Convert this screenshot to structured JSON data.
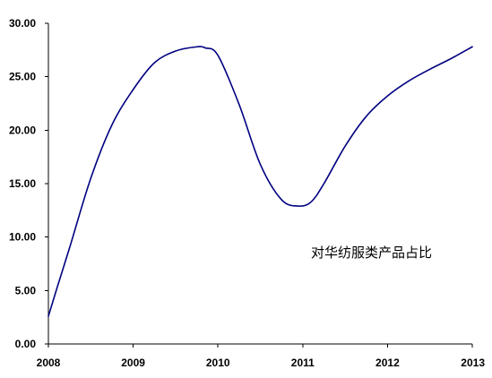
{
  "chart_data": {
    "type": "line",
    "title": "",
    "xlabel": "",
    "ylabel": "",
    "xlim": [
      2008,
      2013
    ],
    "ylim": [
      0,
      30
    ],
    "x_ticks": [
      "2008",
      "2009",
      "2010",
      "2011",
      "2012",
      "2013"
    ],
    "y_ticks": [
      "0.00",
      "5.00",
      "10.00",
      "15.00",
      "20.00",
      "25.00",
      "30.00"
    ],
    "grid": false,
    "annotation": "对华纺服类产品占比",
    "series": [
      {
        "color": "#000080",
        "x": [
          2008.0,
          2008.1,
          2008.25,
          2008.5,
          2008.75,
          2009.0,
          2009.25,
          2009.5,
          2009.75,
          2009.85,
          2010.0,
          2010.25,
          2010.5,
          2010.75,
          2010.95,
          2011.1,
          2011.25,
          2011.5,
          2011.75,
          2012.0,
          2012.25,
          2012.5,
          2012.75,
          2013.0
        ],
        "values": [
          2.6,
          5.2,
          9.0,
          15.5,
          20.5,
          23.8,
          26.3,
          27.4,
          27.8,
          27.7,
          27.0,
          22.4,
          16.8,
          13.5,
          12.9,
          13.3,
          15.0,
          18.5,
          21.3,
          23.2,
          24.6,
          25.7,
          26.7,
          27.8
        ]
      }
    ]
  }
}
